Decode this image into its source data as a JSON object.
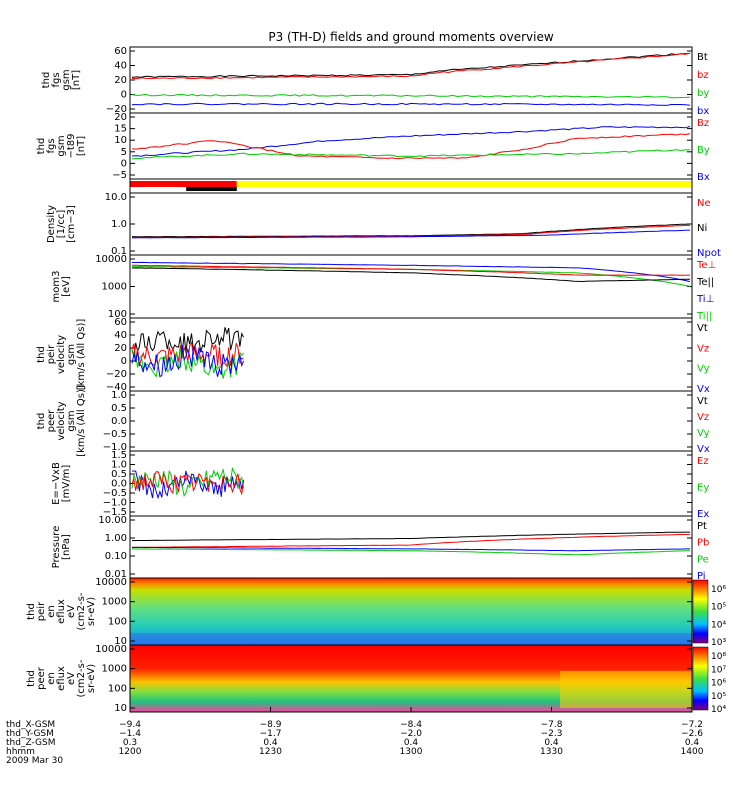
{
  "title": "P3 (TH-D) fields and ground moments overview",
  "colors": {
    "black": "#000000",
    "red": "#ff0000",
    "green": "#00cc00",
    "blue": "#0000ff",
    "yellow": "#ffff00"
  },
  "chart_data": [
    {
      "type": "line",
      "ylabel": [
        "thd",
        "fgs",
        "gsm",
        "[nT]"
      ],
      "yticks": [
        "60",
        "40",
        "20",
        "0",
        "−20"
      ],
      "ylim": [
        -20,
        60
      ],
      "legend": [
        {
          "name": "Bt",
          "color": "black"
        },
        {
          "name": "bz",
          "color": "red"
        },
        {
          "name": "by",
          "color": "green"
        },
        {
          "name": "bx",
          "color": "blue"
        }
      ],
      "series": [
        {
          "name": "Bt",
          "color": "black",
          "x": [
            0,
            0.5,
            0.55,
            1
          ],
          "y": [
            24,
            27,
            32,
            56
          ]
        },
        {
          "name": "bz",
          "color": "red",
          "x": [
            0,
            0.5,
            0.55,
            1
          ],
          "y": [
            22,
            25,
            30,
            55
          ]
        },
        {
          "name": "by",
          "color": "green",
          "x": [
            0,
            0.5,
            1
          ],
          "y": [
            0,
            -1,
            -3
          ]
        },
        {
          "name": "bx",
          "color": "blue",
          "x": [
            0,
            0.5,
            1
          ],
          "y": [
            -12,
            -12,
            -13
          ]
        }
      ]
    },
    {
      "type": "line",
      "ylabel": [
        "thd",
        "fgs",
        "gsm",
        "−t89",
        "[nT]"
      ],
      "yticks": [
        "20",
        "15",
        "10",
        "5",
        "0",
        "−5"
      ],
      "ylim": [
        -7,
        20
      ],
      "legend": [
        {
          "name": "Bz",
          "color": "red"
        },
        {
          "name": "By",
          "color": "green"
        },
        {
          "name": "Bx",
          "color": "blue"
        }
      ],
      "series": [
        {
          "name": "Bx",
          "color": "blue",
          "x": [
            0,
            0.2,
            0.35,
            0.5,
            0.7,
            0.85,
            1
          ],
          "y": [
            2,
            5,
            9,
            11,
            13,
            15,
            15
          ]
        },
        {
          "name": "Bz",
          "color": "red",
          "x": [
            0,
            0.15,
            0.3,
            0.45,
            0.6,
            0.7,
            0.8,
            1
          ],
          "y": [
            5,
            9,
            2,
            1,
            1,
            5,
            10,
            12
          ]
        },
        {
          "name": "By",
          "color": "green",
          "x": [
            0,
            0.2,
            0.5,
            0.8,
            1
          ],
          "y": [
            1,
            3,
            2,
            3,
            5
          ]
        }
      ]
    },
    {
      "type": "bar",
      "ylabel": [],
      "yticks": [],
      "bar": [
        {
          "color": "red",
          "from": 0,
          "to": 0.19
        },
        {
          "color": "black",
          "from": 0.1,
          "to": 0.19
        },
        {
          "color": "yellow",
          "from": 0.19,
          "to": 1
        }
      ]
    },
    {
      "type": "line",
      "log": true,
      "ylabel": [
        "Density",
        "[1/cc]",
        "[cm−3]"
      ],
      "yticks": [
        "10.0",
        "1.0",
        "0.1"
      ],
      "ylim": [
        0.1,
        10
      ],
      "legend": [
        {
          "name": "Ne",
          "color": "red"
        },
        {
          "name": "Ni",
          "color": "black"
        },
        {
          "name": "Npot",
          "color": "blue"
        }
      ],
      "series": [
        {
          "name": "Ni",
          "color": "black",
          "x": [
            0,
            0.5,
            0.7,
            1
          ],
          "y": [
            0.35,
            0.38,
            0.45,
            1.0
          ]
        },
        {
          "name": "Ne",
          "color": "red",
          "x": [
            0,
            0.5,
            0.7,
            1
          ],
          "y": [
            0.33,
            0.36,
            0.42,
            0.9
          ]
        },
        {
          "name": "Npot",
          "color": "blue",
          "x": [
            0,
            0.5,
            0.75,
            1
          ],
          "y": [
            0.32,
            0.35,
            0.4,
            0.6
          ]
        }
      ]
    },
    {
      "type": "line",
      "log": true,
      "ylabel": [
        "mom3",
        "[eV]"
      ],
      "yticks": [
        "10000",
        "1000",
        "100"
      ],
      "ylim": [
        100,
        10000
      ],
      "legend": [
        {
          "name": "Te⊥",
          "color": "red"
        },
        {
          "name": "Te||",
          "color": "black"
        },
        {
          "name": "Ti⊥",
          "color": "blue"
        },
        {
          "name": "Ti||",
          "color": "green"
        }
      ],
      "series": [
        {
          "name": "Ti⊥",
          "color": "blue",
          "x": [
            0,
            0.5,
            0.8,
            1
          ],
          "y": [
            7000,
            5500,
            4500,
            1500
          ]
        },
        {
          "name": "Ti||",
          "color": "green",
          "x": [
            0,
            0.5,
            0.8,
            1
          ],
          "y": [
            5000,
            4000,
            3000,
            1000
          ]
        },
        {
          "name": "Te⊥",
          "color": "red",
          "x": [
            0,
            0.5,
            0.8,
            1
          ],
          "y": [
            5500,
            4000,
            2500,
            2500
          ]
        },
        {
          "name": "Te||",
          "color": "black",
          "x": [
            0,
            0.5,
            0.8,
            1
          ],
          "y": [
            4500,
            3000,
            1500,
            1800
          ]
        }
      ]
    },
    {
      "type": "line",
      "ylabel": [
        "thd",
        "peir",
        "velocity",
        "gsm",
        "[km/s (All Qs)]"
      ],
      "yticks": [
        "60",
        "40",
        "20",
        "0",
        "−20",
        "−40"
      ],
      "ylim": [
        -40,
        60
      ],
      "legend": [
        {
          "name": "Vt",
          "color": "black"
        },
        {
          "name": "Vz",
          "color": "red"
        },
        {
          "name": "Vy",
          "color": "green"
        },
        {
          "name": "Vx",
          "color": "blue"
        }
      ],
      "series": [
        {
          "name": "Vt",
          "color": "black",
          "x": [
            0,
            0.05,
            0.1,
            0.15,
            0.2
          ],
          "y": [
            20,
            35,
            25,
            40,
            25
          ]
        },
        {
          "name": "Vz",
          "color": "red",
          "x": [
            0,
            0.05,
            0.1,
            0.15,
            0.2
          ],
          "y": [
            10,
            5,
            12,
            8,
            10
          ]
        },
        {
          "name": "Vy",
          "color": "green",
          "x": [
            0,
            0.05,
            0.1,
            0.15,
            0.2
          ],
          "y": [
            0,
            -10,
            5,
            -15,
            0
          ]
        },
        {
          "name": "Vx",
          "color": "blue",
          "x": [
            0,
            0.05,
            0.1,
            0.15,
            0.2
          ],
          "y": [
            5,
            -5,
            10,
            -10,
            5
          ]
        }
      ]
    },
    {
      "type": "line",
      "ylabel": [
        "thd",
        "peer",
        "velocity",
        "gsm",
        "[km/s (All Qs)]"
      ],
      "yticks": [
        "1.0",
        "0.5",
        "0.0",
        "−0.5",
        "−1.0"
      ],
      "ylim": [
        -1,
        1
      ],
      "legend": [
        {
          "name": "Vt",
          "color": "black"
        },
        {
          "name": "Vz",
          "color": "red"
        },
        {
          "name": "Vy",
          "color": "green"
        },
        {
          "name": "Vx",
          "color": "blue"
        }
      ],
      "series": []
    },
    {
      "type": "line",
      "ylabel": [
        "E=−VxB",
        "[mV/m]"
      ],
      "yticks": [
        "1.5",
        "1.0",
        "0.5",
        "0.0",
        "−0.5",
        "−1.0",
        "−1.5"
      ],
      "ylim": [
        -1.5,
        1.5
      ],
      "legend": [
        {
          "name": "Ez",
          "color": "red"
        },
        {
          "name": "Ey",
          "color": "green"
        },
        {
          "name": "Ex",
          "color": "blue"
        }
      ],
      "series": [
        {
          "name": "Ex",
          "color": "blue",
          "x": [
            0,
            0.05,
            0.1,
            0.15,
            0.2
          ],
          "y": [
            0.2,
            -0.4,
            0.3,
            -0.2,
            0.1
          ]
        },
        {
          "name": "Ey",
          "color": "green",
          "x": [
            0,
            0.05,
            0.1,
            0.15,
            0.2
          ],
          "y": [
            0.1,
            0.3,
            -0.3,
            0.4,
            0.2
          ]
        },
        {
          "name": "Ez",
          "color": "red",
          "x": [
            0,
            0.05,
            0.1,
            0.15,
            0.2
          ],
          "y": [
            0.05,
            0.1,
            -0.1,
            0.2,
            0.0
          ]
        }
      ]
    },
    {
      "type": "line",
      "log": true,
      "ylabel": [
        "Pressure",
        "[nPa]"
      ],
      "yticks": [
        "10.00",
        "1.00",
        "0.10",
        "0.01"
      ],
      "ylim": [
        0.01,
        10
      ],
      "legend": [
        {
          "name": "Pt",
          "color": "black"
        },
        {
          "name": "Pb",
          "color": "red"
        },
        {
          "name": "Pe",
          "color": "green"
        },
        {
          "name": "Pi",
          "color": "blue"
        }
      ],
      "series": [
        {
          "name": "Pt",
          "color": "black",
          "x": [
            0,
            0.5,
            1
          ],
          "y": [
            0.7,
            0.9,
            2.0
          ]
        },
        {
          "name": "Pb",
          "color": "red",
          "x": [
            0,
            0.5,
            1
          ],
          "y": [
            0.3,
            0.4,
            1.5
          ]
        },
        {
          "name": "Pi",
          "color": "blue",
          "x": [
            0,
            0.5,
            0.8,
            1
          ],
          "y": [
            0.3,
            0.25,
            0.2,
            0.25
          ]
        },
        {
          "name": "Pe",
          "color": "green",
          "x": [
            0,
            0.5,
            0.8,
            1
          ],
          "y": [
            0.25,
            0.2,
            0.12,
            0.2
          ]
        }
      ]
    },
    {
      "type": "heatmap",
      "log": true,
      "ylabel": [
        "thd",
        "peir",
        "en",
        "eflux",
        "eV",
        "(cm2-s-",
        "sr-eV)"
      ],
      "yticks": [
        "10000",
        "1000",
        "100",
        "10"
      ],
      "colorbar": [
        "10⁶",
        "10⁵",
        "10⁴",
        "10³"
      ]
    },
    {
      "type": "heatmap",
      "log": true,
      "ylabel": [
        "thd",
        "peer",
        "en",
        "eflux",
        "eV",
        "(cm2-s-",
        "sr-eV)"
      ],
      "yticks": [
        "10000",
        "1000",
        "100",
        "10"
      ],
      "colorbar": [
        "10⁸",
        "10⁷",
        "10⁶",
        "10⁵",
        "10⁴"
      ]
    }
  ],
  "xaxis": {
    "ticks": [
      "1200",
      "1230",
      "1300",
      "1330",
      "1400"
    ],
    "rows": [
      {
        "label": "thd_X-GSM",
        "values": [
          "−9.4",
          "−8.9",
          "−8.4",
          "−7.8",
          "−7.2"
        ]
      },
      {
        "label": "thd_Y-GSM",
        "values": [
          "−1.4",
          "−1.7",
          "−2.0",
          "−2.3",
          "−2.6"
        ]
      },
      {
        "label": "thd_Z-GSM",
        "values": [
          "0.3",
          "0.4",
          "0.4",
          "0.4",
          "0.4"
        ]
      },
      {
        "label": "hhmm",
        "values": [
          "1200",
          "1230",
          "1300",
          "1330",
          "1400"
        ]
      }
    ],
    "date": "2009 Mar 30"
  }
}
